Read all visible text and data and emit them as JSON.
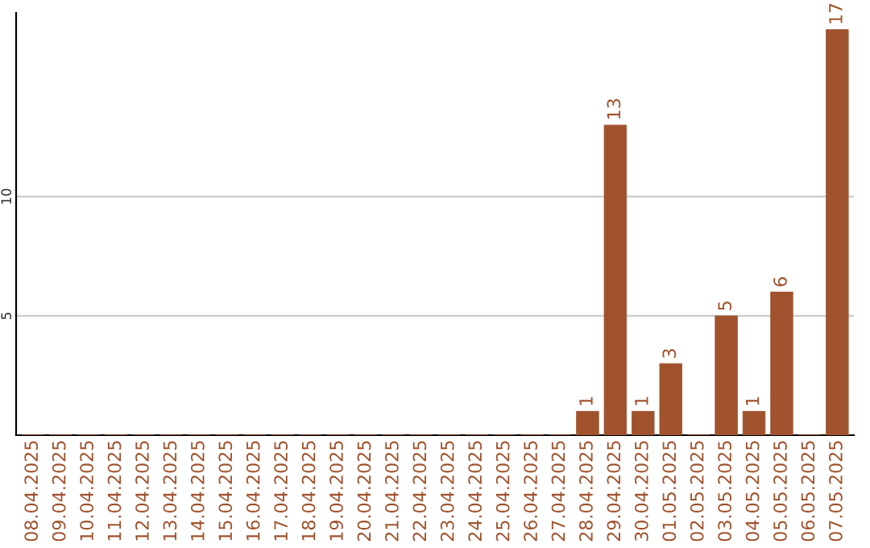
{
  "chart_data": {
    "type": "bar",
    "categories": [
      "08.04.2025",
      "09.04.2025",
      "10.04.2025",
      "11.04.2025",
      "12.04.2025",
      "13.04.2025",
      "14.04.2025",
      "15.04.2025",
      "16.04.2025",
      "17.04.2025",
      "18.04.2025",
      "19.04.2025",
      "20.04.2025",
      "21.04.2025",
      "22.04.2025",
      "23.04.2025",
      "24.04.2025",
      "25.04.2025",
      "26.04.2025",
      "27.04.2025",
      "28.04.2025",
      "29.04.2025",
      "30.04.2025",
      "01.05.2025",
      "02.05.2025",
      "03.05.2025",
      "04.05.2025",
      "05.05.2025",
      "06.05.2025",
      "07.05.2025"
    ],
    "values": [
      0,
      0,
      0,
      0,
      0,
      0,
      0,
      0,
      0,
      0,
      0,
      0,
      0,
      0,
      0,
      0,
      0,
      0,
      0,
      0,
      1,
      13,
      1,
      3,
      0,
      5,
      1,
      6,
      0,
      17
    ],
    "value_labels": [
      null,
      null,
      null,
      null,
      null,
      null,
      null,
      null,
      null,
      null,
      null,
      null,
      null,
      null,
      null,
      null,
      null,
      null,
      null,
      null,
      "1",
      "13",
      "1",
      "3",
      null,
      "5",
      "1",
      "6",
      null,
      "17"
    ],
    "color": "#a0522d",
    "ylim": [
      0,
      17.7
    ],
    "yticks": [
      5,
      10
    ],
    "grid": "y"
  }
}
